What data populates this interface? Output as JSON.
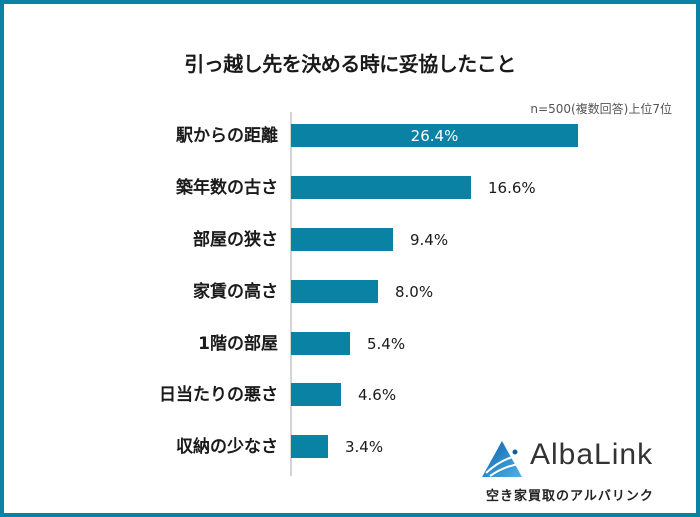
{
  "chart_data": {
    "type": "bar",
    "orientation": "horizontal",
    "title": "引っ越し先を決める時に妥協したこと",
    "subtitle": "n=500(複数回答)上位7位",
    "categories": [
      "駅からの距離",
      "築年数の古さ",
      "部屋の狭さ",
      "家賃の高さ",
      "1階の部屋",
      "日当たりの悪さ",
      "収納の少なさ"
    ],
    "values": [
      26.4,
      16.6,
      9.4,
      8.0,
      5.4,
      4.6,
      3.4
    ],
    "value_labels": [
      "26.4%",
      "16.6%",
      "9.4%",
      "8.0%",
      "5.4%",
      "4.6%",
      "3.4%"
    ],
    "unit": "%",
    "xlabel": "",
    "ylabel": "",
    "grid": false,
    "legend": null,
    "bar_color": "#0a82a4"
  },
  "brand": {
    "name": "AlbaLink",
    "tagline": "空き家買取のアルバリンク"
  },
  "colors": {
    "frame": "#0a82a4",
    "bar": "#0a82a4",
    "axis": "#d4d4d4"
  }
}
